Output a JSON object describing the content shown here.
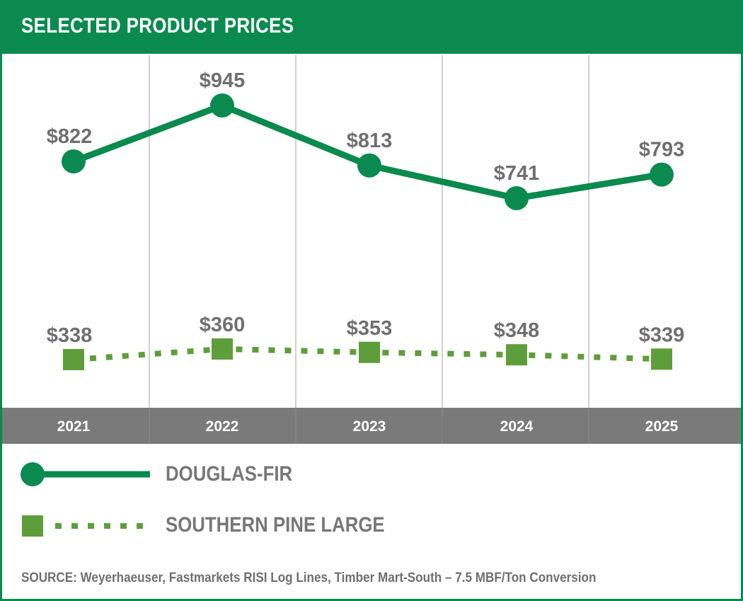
{
  "header": {
    "title": "SELECTED PRODUCT PRICES"
  },
  "colors": {
    "brand_green": "#0a8a4f",
    "series_green_light": "#5e9e3a",
    "axis_band": "#7a7a7a",
    "label_gray": "#6f6f6f"
  },
  "chart_data": {
    "type": "line",
    "title": "SELECTED PRODUCT PRICES",
    "categories": [
      "2021",
      "2022",
      "2023",
      "2024",
      "2025"
    ],
    "series": [
      {
        "name": "DOUGLAS-FIR",
        "values": [
          822,
          945,
          813,
          741,
          793
        ],
        "labels": [
          "$822",
          "$945",
          "$813",
          "$741",
          "$793"
        ],
        "line_style": "solid",
        "marker": "circle"
      },
      {
        "name": "SOUTHERN PINE LARGE",
        "values": [
          338,
          360,
          353,
          348,
          339
        ],
        "labels": [
          "$338",
          "$360",
          "$353",
          "$348",
          "$339"
        ],
        "line_style": "dotted",
        "marker": "square"
      }
    ],
    "legend": [
      "DOUGLAS-FIR",
      "SOUTHERN PINE LARGE"
    ],
    "legend_position": "bottom",
    "grid": "vertical",
    "source": "SOURCE: Weyerhaeuser, Fastmarkets RISI Log Lines, Timber Mart-South – 7.5 MBF/Ton Conversion"
  }
}
